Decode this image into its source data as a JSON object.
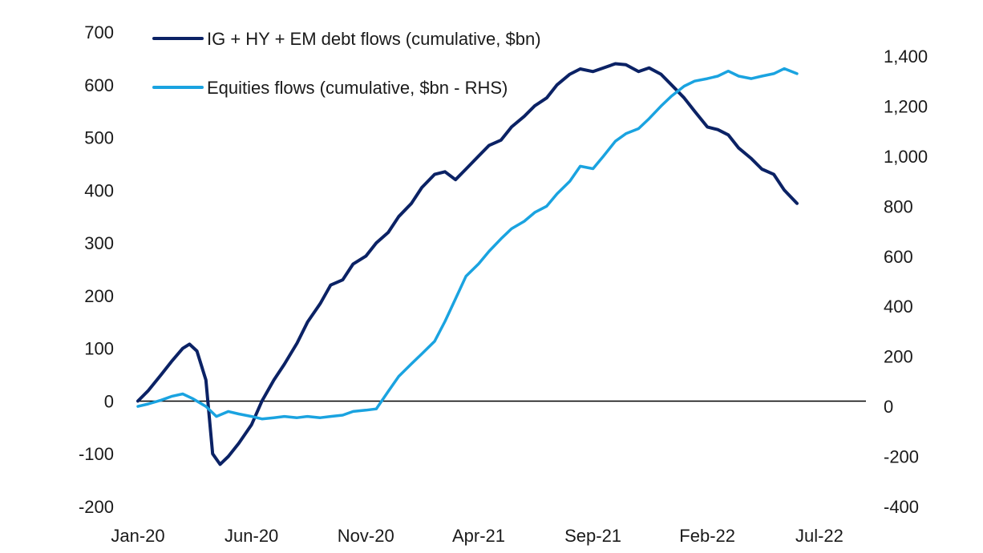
{
  "chart_data": {
    "type": "line",
    "title": "",
    "xlabel": "",
    "ylabel": "",
    "x_tick_labels": [
      "Jan-20",
      "Jun-20",
      "Nov-20",
      "Apr-21",
      "Sep-21",
      "Feb-22",
      "Jul-22"
    ],
    "x_ticks": [
      "2020-01",
      "2020-06",
      "2020-11",
      "2021-04",
      "2021-09",
      "2022-02",
      "2022-07"
    ],
    "ylim_left": [
      -200,
      700
    ],
    "yticks_left": [
      -200,
      -100,
      0,
      100,
      200,
      300,
      400,
      500,
      600,
      700
    ],
    "ylim_right": [
      -400,
      1400
    ],
    "yticks_right": [
      -400,
      -200,
      0,
      200,
      400,
      600,
      800,
      1000,
      1200,
      1400
    ],
    "ytick_labels_right": [
      "-400",
      "-200",
      "0",
      "200",
      "400",
      "600",
      "800",
      "1,000",
      "1,200",
      "1,400"
    ],
    "legend_position": "top-left",
    "grid": false,
    "series": [
      {
        "name": "IG + HY + EM debt flows (cumulative, $bn)",
        "axis": "left",
        "color": "#0b2265",
        "points": [
          [
            "2020-01-01",
            0
          ],
          [
            "2020-01-15",
            20
          ],
          [
            "2020-02-01",
            50
          ],
          [
            "2020-02-15",
            75
          ],
          [
            "2020-03-01",
            100
          ],
          [
            "2020-03-10",
            108
          ],
          [
            "2020-03-20",
            95
          ],
          [
            "2020-04-01",
            40
          ],
          [
            "2020-04-10",
            -100
          ],
          [
            "2020-04-20",
            -120
          ],
          [
            "2020-05-01",
            -105
          ],
          [
            "2020-05-15",
            -80
          ],
          [
            "2020-06-01",
            -45
          ],
          [
            "2020-06-15",
            0
          ],
          [
            "2020-07-01",
            40
          ],
          [
            "2020-07-15",
            70
          ],
          [
            "2020-08-01",
            110
          ],
          [
            "2020-08-15",
            150
          ],
          [
            "2020-09-01",
            185
          ],
          [
            "2020-09-15",
            220
          ],
          [
            "2020-10-01",
            230
          ],
          [
            "2020-10-15",
            260
          ],
          [
            "2020-11-01",
            275
          ],
          [
            "2020-11-15",
            300
          ],
          [
            "2020-12-01",
            320
          ],
          [
            "2020-12-15",
            350
          ],
          [
            "2021-01-01",
            375
          ],
          [
            "2021-01-15",
            405
          ],
          [
            "2021-02-01",
            430
          ],
          [
            "2021-02-15",
            435
          ],
          [
            "2021-03-01",
            420
          ],
          [
            "2021-03-15",
            440
          ],
          [
            "2021-04-01",
            465
          ],
          [
            "2021-04-15",
            485
          ],
          [
            "2021-05-01",
            495
          ],
          [
            "2021-05-15",
            520
          ],
          [
            "2021-06-01",
            540
          ],
          [
            "2021-06-15",
            560
          ],
          [
            "2021-07-01",
            575
          ],
          [
            "2021-07-15",
            600
          ],
          [
            "2021-08-01",
            620
          ],
          [
            "2021-08-15",
            630
          ],
          [
            "2021-09-01",
            625
          ],
          [
            "2021-09-15",
            632
          ],
          [
            "2021-10-01",
            640
          ],
          [
            "2021-10-15",
            638
          ],
          [
            "2021-11-01",
            625
          ],
          [
            "2021-11-15",
            632
          ],
          [
            "2021-12-01",
            620
          ],
          [
            "2021-12-15",
            600
          ],
          [
            "2022-01-01",
            575
          ],
          [
            "2022-01-15",
            550
          ],
          [
            "2022-02-01",
            520
          ],
          [
            "2022-02-15",
            515
          ],
          [
            "2022-03-01",
            505
          ],
          [
            "2022-03-15",
            480
          ],
          [
            "2022-04-01",
            460
          ],
          [
            "2022-04-15",
            440
          ],
          [
            "2022-05-01",
            430
          ],
          [
            "2022-05-15",
            400
          ],
          [
            "2022-06-01",
            375
          ]
        ]
      },
      {
        "name": "Equities flows (cumulative, $bn - RHS)",
        "axis": "right",
        "color": "#1aa3e0",
        "points": [
          [
            "2020-01-01",
            0
          ],
          [
            "2020-01-15",
            10
          ],
          [
            "2020-02-01",
            25
          ],
          [
            "2020-02-15",
            40
          ],
          [
            "2020-03-01",
            50
          ],
          [
            "2020-03-15",
            30
          ],
          [
            "2020-04-01",
            0
          ],
          [
            "2020-04-15",
            -40
          ],
          [
            "2020-05-01",
            -20
          ],
          [
            "2020-05-15",
            -30
          ],
          [
            "2020-06-01",
            -40
          ],
          [
            "2020-06-15",
            -50
          ],
          [
            "2020-07-01",
            -45
          ],
          [
            "2020-07-15",
            -40
          ],
          [
            "2020-08-01",
            -45
          ],
          [
            "2020-08-15",
            -40
          ],
          [
            "2020-09-01",
            -45
          ],
          [
            "2020-09-15",
            -40
          ],
          [
            "2020-10-01",
            -35
          ],
          [
            "2020-10-15",
            -20
          ],
          [
            "2020-11-01",
            -15
          ],
          [
            "2020-11-15",
            -10
          ],
          [
            "2020-12-01",
            60
          ],
          [
            "2020-12-15",
            120
          ],
          [
            "2021-01-01",
            170
          ],
          [
            "2021-01-15",
            210
          ],
          [
            "2021-02-01",
            260
          ],
          [
            "2021-02-15",
            340
          ],
          [
            "2021-03-01",
            430
          ],
          [
            "2021-03-15",
            520
          ],
          [
            "2021-04-01",
            570
          ],
          [
            "2021-04-15",
            620
          ],
          [
            "2021-05-01",
            670
          ],
          [
            "2021-05-15",
            710
          ],
          [
            "2021-06-01",
            740
          ],
          [
            "2021-06-15",
            775
          ],
          [
            "2021-07-01",
            800
          ],
          [
            "2021-07-15",
            850
          ],
          [
            "2021-08-01",
            900
          ],
          [
            "2021-08-15",
            960
          ],
          [
            "2021-09-01",
            950
          ],
          [
            "2021-09-15",
            1000
          ],
          [
            "2021-10-01",
            1060
          ],
          [
            "2021-10-15",
            1090
          ],
          [
            "2021-11-01",
            1110
          ],
          [
            "2021-11-15",
            1150
          ],
          [
            "2021-12-01",
            1200
          ],
          [
            "2021-12-15",
            1240
          ],
          [
            "2022-01-01",
            1280
          ],
          [
            "2022-01-15",
            1300
          ],
          [
            "2022-02-01",
            1310
          ],
          [
            "2022-02-15",
            1320
          ],
          [
            "2022-03-01",
            1340
          ],
          [
            "2022-03-15",
            1320
          ],
          [
            "2022-04-01",
            1310
          ],
          [
            "2022-04-15",
            1320
          ],
          [
            "2022-05-01",
            1330
          ],
          [
            "2022-05-15",
            1350
          ],
          [
            "2022-06-01",
            1330
          ]
        ]
      }
    ]
  }
}
